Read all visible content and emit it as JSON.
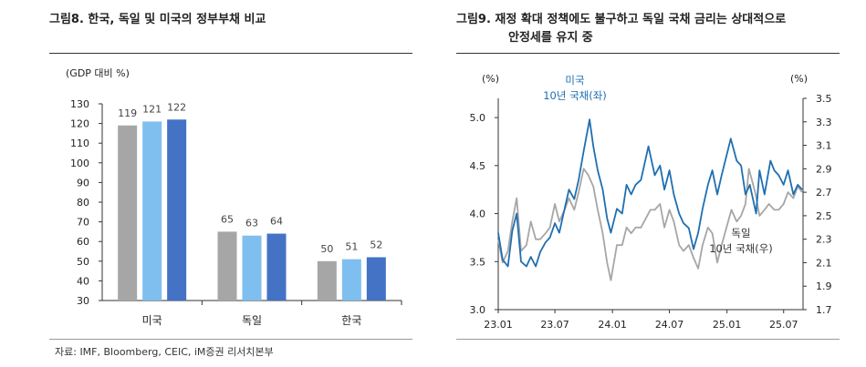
{
  "figures": {
    "left_title": "그림8.   한국, 독일 및 미국의 정부부채 비교",
    "right_title_line1": "그림9.   재정 확대 정책에도 불구하고 독일 국채 금리는 상대적으로",
    "right_title_line2": "안정세를 유지 중",
    "source": "자료: IMF, Bloomberg, CEIC, iM증권 리서치본부"
  },
  "colors": {
    "gray": "#a6a6a6",
    "light_blue": "#7fbfef",
    "blue": "#4472c4",
    "line_blue": "#1f6fb0",
    "line_gray": "#a6a6a6"
  },
  "chart_data": [
    {
      "type": "bar",
      "ylabel": "(GDP 대비 %)",
      "categories": [
        "미국",
        "독일",
        "한국"
      ],
      "series": [
        {
          "values": [
            119,
            65,
            50
          ],
          "color": "#a6a6a6"
        },
        {
          "values": [
            121,
            63,
            51
          ],
          "color": "#7fbfef"
        },
        {
          "values": [
            122,
            64,
            52
          ],
          "color": "#4472c4"
        }
      ],
      "ylim": [
        30,
        130
      ],
      "yticks": [
        "130",
        "120",
        "110",
        "100",
        "90",
        "80",
        "70",
        "60",
        "50",
        "40",
        "30"
      ],
      "grid": false
    },
    {
      "type": "line",
      "y_left_label": "(%)",
      "y_right_label": "(%)",
      "x_ticks": [
        "23.01",
        "23.07",
        "24.01",
        "24.07",
        "25.01",
        "25.07"
      ],
      "y_left_ticks": [
        "5.0",
        "4.5",
        "4.0",
        "3.5",
        "3.0"
      ],
      "y_right_ticks": [
        "3.5",
        "3.3",
        "3.1",
        "2.9",
        "2.7",
        "2.5",
        "2.3",
        "2.1",
        "1.9",
        "1.7"
      ],
      "ylim_left": [
        3.0,
        5.2
      ],
      "ylim_right": [
        1.7,
        3.5
      ],
      "xlim": [
        "2023-01-01",
        "2025-09-01"
      ],
      "series": [
        {
          "label_line1": "미국",
          "label_line2": "10년 국채(좌)",
          "axis": "left",
          "color": "#1f6fb0",
          "points": [
            [
              "2023-01-01",
              3.8
            ],
            [
              "2023-01-15",
              3.52
            ],
            [
              "2023-02-01",
              3.45
            ],
            [
              "2023-02-15",
              3.82
            ],
            [
              "2023-03-01",
              4.0
            ],
            [
              "2023-03-15",
              3.5
            ],
            [
              "2023-04-01",
              3.45
            ],
            [
              "2023-04-15",
              3.55
            ],
            [
              "2023-05-01",
              3.45
            ],
            [
              "2023-05-15",
              3.6
            ],
            [
              "2023-06-01",
              3.7
            ],
            [
              "2023-06-15",
              3.75
            ],
            [
              "2023-07-01",
              3.9
            ],
            [
              "2023-07-15",
              3.8
            ],
            [
              "2023-08-01",
              4.05
            ],
            [
              "2023-08-15",
              4.25
            ],
            [
              "2023-09-01",
              4.15
            ],
            [
              "2023-09-15",
              4.35
            ],
            [
              "2023-10-01",
              4.65
            ],
            [
              "2023-10-20",
              4.98
            ],
            [
              "2023-11-01",
              4.7
            ],
            [
              "2023-11-15",
              4.45
            ],
            [
              "2023-12-01",
              4.25
            ],
            [
              "2023-12-15",
              3.95
            ],
            [
              "2023-12-27",
              3.8
            ],
            [
              "2024-01-15",
              4.05
            ],
            [
              "2024-02-01",
              4.0
            ],
            [
              "2024-02-15",
              4.3
            ],
            [
              "2024-03-01",
              4.2
            ],
            [
              "2024-03-15",
              4.3
            ],
            [
              "2024-04-01",
              4.35
            ],
            [
              "2024-04-25",
              4.7
            ],
            [
              "2024-05-15",
              4.4
            ],
            [
              "2024-06-01",
              4.5
            ],
            [
              "2024-06-15",
              4.25
            ],
            [
              "2024-07-01",
              4.45
            ],
            [
              "2024-07-15",
              4.2
            ],
            [
              "2024-08-01",
              4.0
            ],
            [
              "2024-08-15",
              3.9
            ],
            [
              "2024-09-01",
              3.85
            ],
            [
              "2024-09-16",
              3.63
            ],
            [
              "2024-10-01",
              3.8
            ],
            [
              "2024-10-15",
              4.05
            ],
            [
              "2024-11-01",
              4.3
            ],
            [
              "2024-11-15",
              4.45
            ],
            [
              "2024-12-01",
              4.2
            ],
            [
              "2024-12-15",
              4.4
            ],
            [
              "2025-01-13",
              4.78
            ],
            [
              "2025-02-01",
              4.55
            ],
            [
              "2025-02-15",
              4.5
            ],
            [
              "2025-03-01",
              4.2
            ],
            [
              "2025-03-15",
              4.3
            ],
            [
              "2025-04-04",
              4.0
            ],
            [
              "2025-04-15",
              4.45
            ],
            [
              "2025-05-01",
              4.2
            ],
            [
              "2025-05-20",
              4.55
            ],
            [
              "2025-06-01",
              4.45
            ],
            [
              "2025-06-15",
              4.4
            ],
            [
              "2025-07-01",
              4.3
            ],
            [
              "2025-07-15",
              4.45
            ],
            [
              "2025-08-01",
              4.2
            ],
            [
              "2025-08-15",
              4.3
            ],
            [
              "2025-08-29",
              4.25
            ]
          ]
        },
        {
          "label_line1": "독일",
          "label_line2": "10년 국채(우)",
          "axis": "right",
          "color": "#a6a6a6",
          "points": [
            [
              "2023-01-01",
              2.3
            ],
            [
              "2023-01-15",
              2.1
            ],
            [
              "2023-02-01",
              2.2
            ],
            [
              "2023-02-15",
              2.45
            ],
            [
              "2023-03-01",
              2.65
            ],
            [
              "2023-03-15",
              2.2
            ],
            [
              "2023-04-01",
              2.25
            ],
            [
              "2023-04-15",
              2.45
            ],
            [
              "2023-05-01",
              2.3
            ],
            [
              "2023-05-15",
              2.3
            ],
            [
              "2023-06-01",
              2.35
            ],
            [
              "2023-06-15",
              2.4
            ],
            [
              "2023-07-01",
              2.6
            ],
            [
              "2023-07-15",
              2.45
            ],
            [
              "2023-08-01",
              2.55
            ],
            [
              "2023-08-15",
              2.65
            ],
            [
              "2023-09-01",
              2.55
            ],
            [
              "2023-09-15",
              2.7
            ],
            [
              "2023-10-01",
              2.9
            ],
            [
              "2023-10-15",
              2.85
            ],
            [
              "2023-11-01",
              2.75
            ],
            [
              "2023-11-15",
              2.55
            ],
            [
              "2023-12-01",
              2.35
            ],
            [
              "2023-12-15",
              2.1
            ],
            [
              "2023-12-27",
              1.95
            ],
            [
              "2024-01-15",
              2.25
            ],
            [
              "2024-02-01",
              2.25
            ],
            [
              "2024-02-15",
              2.4
            ],
            [
              "2024-03-01",
              2.35
            ],
            [
              "2024-03-15",
              2.4
            ],
            [
              "2024-04-01",
              2.4
            ],
            [
              "2024-05-01",
              2.55
            ],
            [
              "2024-05-15",
              2.55
            ],
            [
              "2024-06-01",
              2.6
            ],
            [
              "2024-06-15",
              2.4
            ],
            [
              "2024-07-01",
              2.55
            ],
            [
              "2024-07-15",
              2.45
            ],
            [
              "2024-08-01",
              2.25
            ],
            [
              "2024-08-15",
              2.2
            ],
            [
              "2024-09-01",
              2.25
            ],
            [
              "2024-09-15",
              2.15
            ],
            [
              "2024-10-01",
              2.05
            ],
            [
              "2024-10-15",
              2.25
            ],
            [
              "2024-11-01",
              2.4
            ],
            [
              "2024-11-15",
              2.35
            ],
            [
              "2024-12-01",
              2.1
            ],
            [
              "2024-12-15",
              2.25
            ],
            [
              "2025-01-15",
              2.55
            ],
            [
              "2025-02-01",
              2.45
            ],
            [
              "2025-02-15",
              2.5
            ],
            [
              "2025-03-01",
              2.6
            ],
            [
              "2025-03-12",
              2.9
            ],
            [
              "2025-04-01",
              2.7
            ],
            [
              "2025-04-15",
              2.5
            ],
            [
              "2025-05-01",
              2.55
            ],
            [
              "2025-05-15",
              2.6
            ],
            [
              "2025-06-01",
              2.55
            ],
            [
              "2025-06-15",
              2.55
            ],
            [
              "2025-07-01",
              2.6
            ],
            [
              "2025-07-15",
              2.7
            ],
            [
              "2025-08-01",
              2.65
            ],
            [
              "2025-08-15",
              2.75
            ],
            [
              "2025-08-29",
              2.7
            ]
          ]
        }
      ],
      "grid": false
    }
  ]
}
